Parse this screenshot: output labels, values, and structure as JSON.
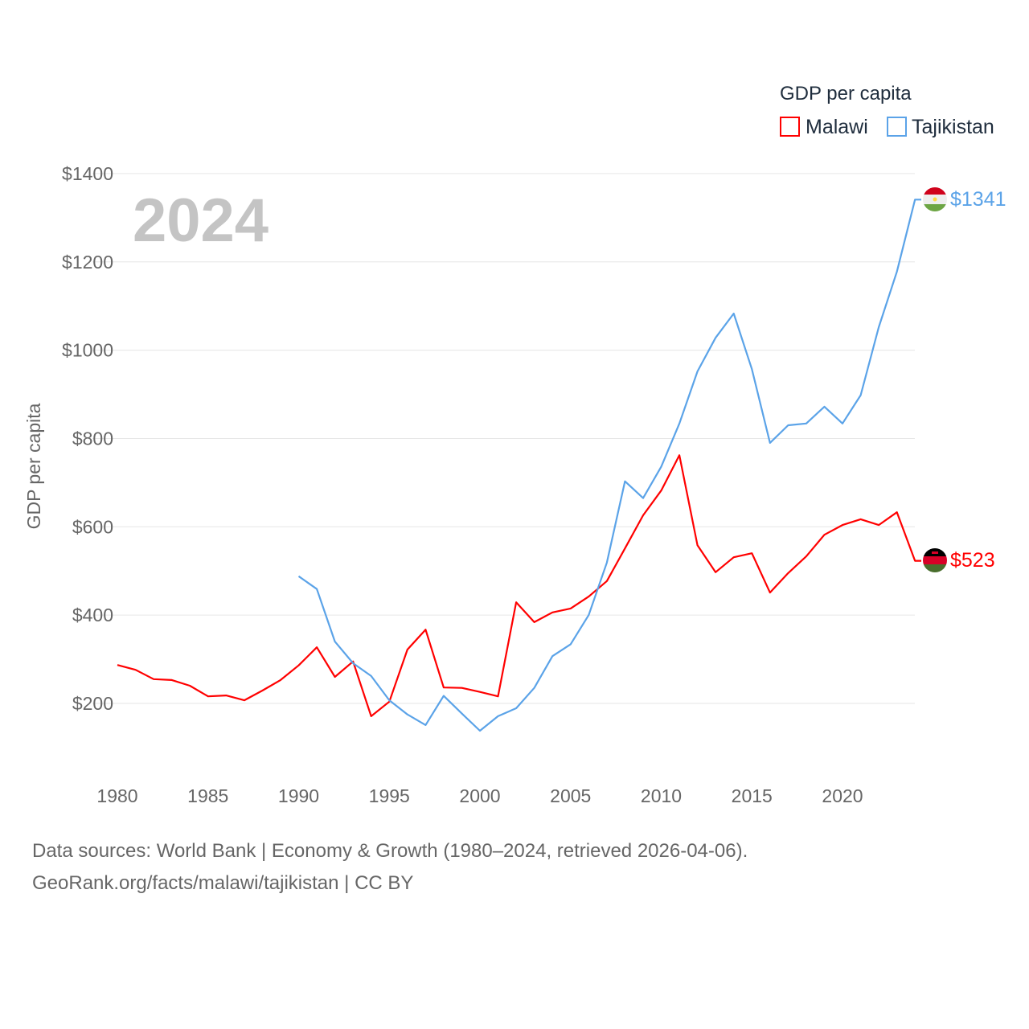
{
  "chart_data": {
    "type": "line",
    "title": "GDP per capita",
    "ylabel": "GDP per capita",
    "xlabel": "",
    "year_label": "2024",
    "ylim": [
      0,
      1400
    ],
    "xlim": [
      1980,
      2024
    ],
    "yticks": [
      200,
      400,
      600,
      800,
      1000,
      1200,
      1400
    ],
    "ytick_labels": [
      "$200",
      "$400",
      "$600",
      "$800",
      "$1000",
      "$1200",
      "$1400"
    ],
    "xticks": [
      1980,
      1985,
      1990,
      1995,
      2000,
      2005,
      2010,
      2015,
      2020
    ],
    "xtick_labels": [
      "1980",
      "1985",
      "1990",
      "1995",
      "2000",
      "2005",
      "2010",
      "2015",
      "2020"
    ],
    "grid": true,
    "legend": {
      "title": "GDP per capita",
      "placement": "top-right"
    },
    "series": [
      {
        "name": "Malawi",
        "color": "#ff0000",
        "end_label": "$523",
        "flag": "malawi-flag",
        "x": [
          1980,
          1981,
          1982,
          1983,
          1984,
          1985,
          1986,
          1987,
          1988,
          1989,
          1990,
          1991,
          1992,
          1993,
          1994,
          1995,
          1996,
          1997,
          1998,
          1999,
          2000,
          2001,
          2002,
          2003,
          2004,
          2005,
          2006,
          2007,
          2008,
          2009,
          2010,
          2011,
          2012,
          2013,
          2014,
          2015,
          2016,
          2017,
          2018,
          2019,
          2020,
          2021,
          2022,
          2023,
          2024
        ],
        "values": [
          287,
          276,
          255,
          253,
          240,
          216,
          218,
          207,
          229,
          253,
          286,
          327,
          260,
          295,
          171,
          204,
          322,
          367,
          236,
          235,
          226,
          216,
          429,
          384,
          406,
          415,
          442,
          477,
          551,
          626,
          682,
          762,
          558,
          497,
          531,
          540,
          451,
          495,
          533,
          582,
          604,
          617,
          604,
          633,
          523
        ]
      },
      {
        "name": "Tajikistan",
        "color": "#5ba3e8",
        "end_label": "$1341",
        "flag": "tajikistan-flag",
        "x": [
          1990,
          1991,
          1992,
          1993,
          1994,
          1995,
          1996,
          1997,
          1998,
          1999,
          2000,
          2001,
          2002,
          2003,
          2004,
          2005,
          2006,
          2007,
          2008,
          2009,
          2010,
          2011,
          2012,
          2013,
          2014,
          2015,
          2016,
          2017,
          2018,
          2019,
          2020,
          2021,
          2022,
          2023,
          2024
        ],
        "values": [
          488,
          459,
          340,
          291,
          262,
          207,
          175,
          151,
          217,
          177,
          138,
          171,
          189,
          235,
          307,
          334,
          400,
          519,
          703,
          665,
          736,
          834,
          952,
          1028,
          1083,
          957,
          790,
          830,
          834,
          872,
          834,
          898,
          1052,
          1178,
          1341
        ]
      }
    ]
  },
  "footer": {
    "line1": "Data sources: World Bank | Economy & Growth (1980–2024, retrieved 2026-04-06).",
    "line2": "GeoRank.org/facts/malawi/tajikistan | CC BY"
  }
}
